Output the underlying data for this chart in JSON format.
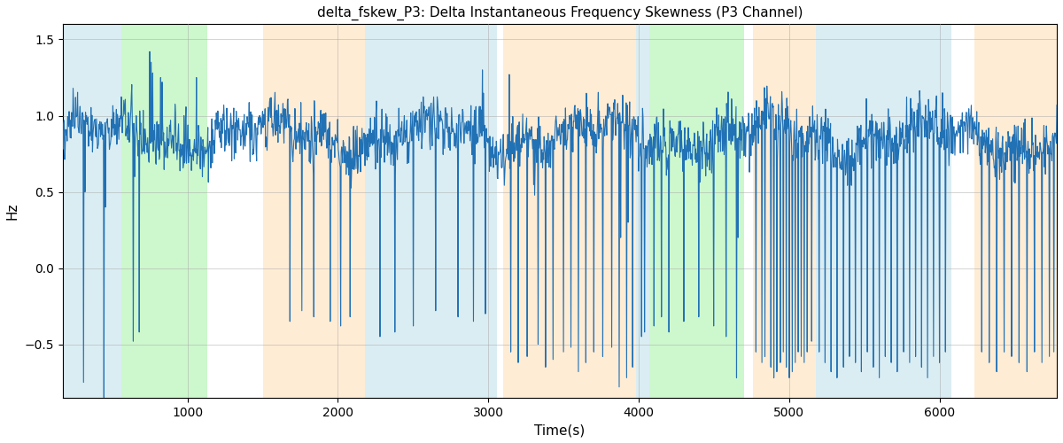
{
  "title": "delta_fskew_P3: Delta Instantaneous Frequency Skewness (P3 Channel)",
  "xlabel": "Time(s)",
  "ylabel": "Hz",
  "xlim": [
    170,
    6780
  ],
  "ylim": [
    -0.85,
    1.6
  ],
  "yticks": [
    -0.5,
    0.0,
    0.5,
    1.0,
    1.5
  ],
  "xticks": [
    1000,
    2000,
    3000,
    4000,
    5000,
    6000
  ],
  "line_color": "#2171b5",
  "figsize": [
    12.0,
    5.0
  ],
  "dpi": 100,
  "seed": 42,
  "bands": [
    {
      "xmin": 170,
      "xmax": 560,
      "color": "#add8e6",
      "alpha": 0.45
    },
    {
      "xmin": 560,
      "xmax": 1130,
      "color": "#90ee90",
      "alpha": 0.45
    },
    {
      "xmin": 1500,
      "xmax": 2180,
      "color": "#ffd7a0",
      "alpha": 0.45
    },
    {
      "xmin": 2180,
      "xmax": 3060,
      "color": "#add8e6",
      "alpha": 0.45
    },
    {
      "xmin": 3100,
      "xmax": 3980,
      "color": "#ffd7a0",
      "alpha": 0.45
    },
    {
      "xmin": 3980,
      "xmax": 4070,
      "color": "#add8e6",
      "alpha": 0.45
    },
    {
      "xmin": 4070,
      "xmax": 4700,
      "color": "#90ee90",
      "alpha": 0.45
    },
    {
      "xmin": 4760,
      "xmax": 5180,
      "color": "#ffd7a0",
      "alpha": 0.45
    },
    {
      "xmin": 5180,
      "xmax": 6080,
      "color": "#add8e6",
      "alpha": 0.45
    },
    {
      "xmin": 6230,
      "xmax": 6780,
      "color": "#ffd7a0",
      "alpha": 0.45
    }
  ]
}
